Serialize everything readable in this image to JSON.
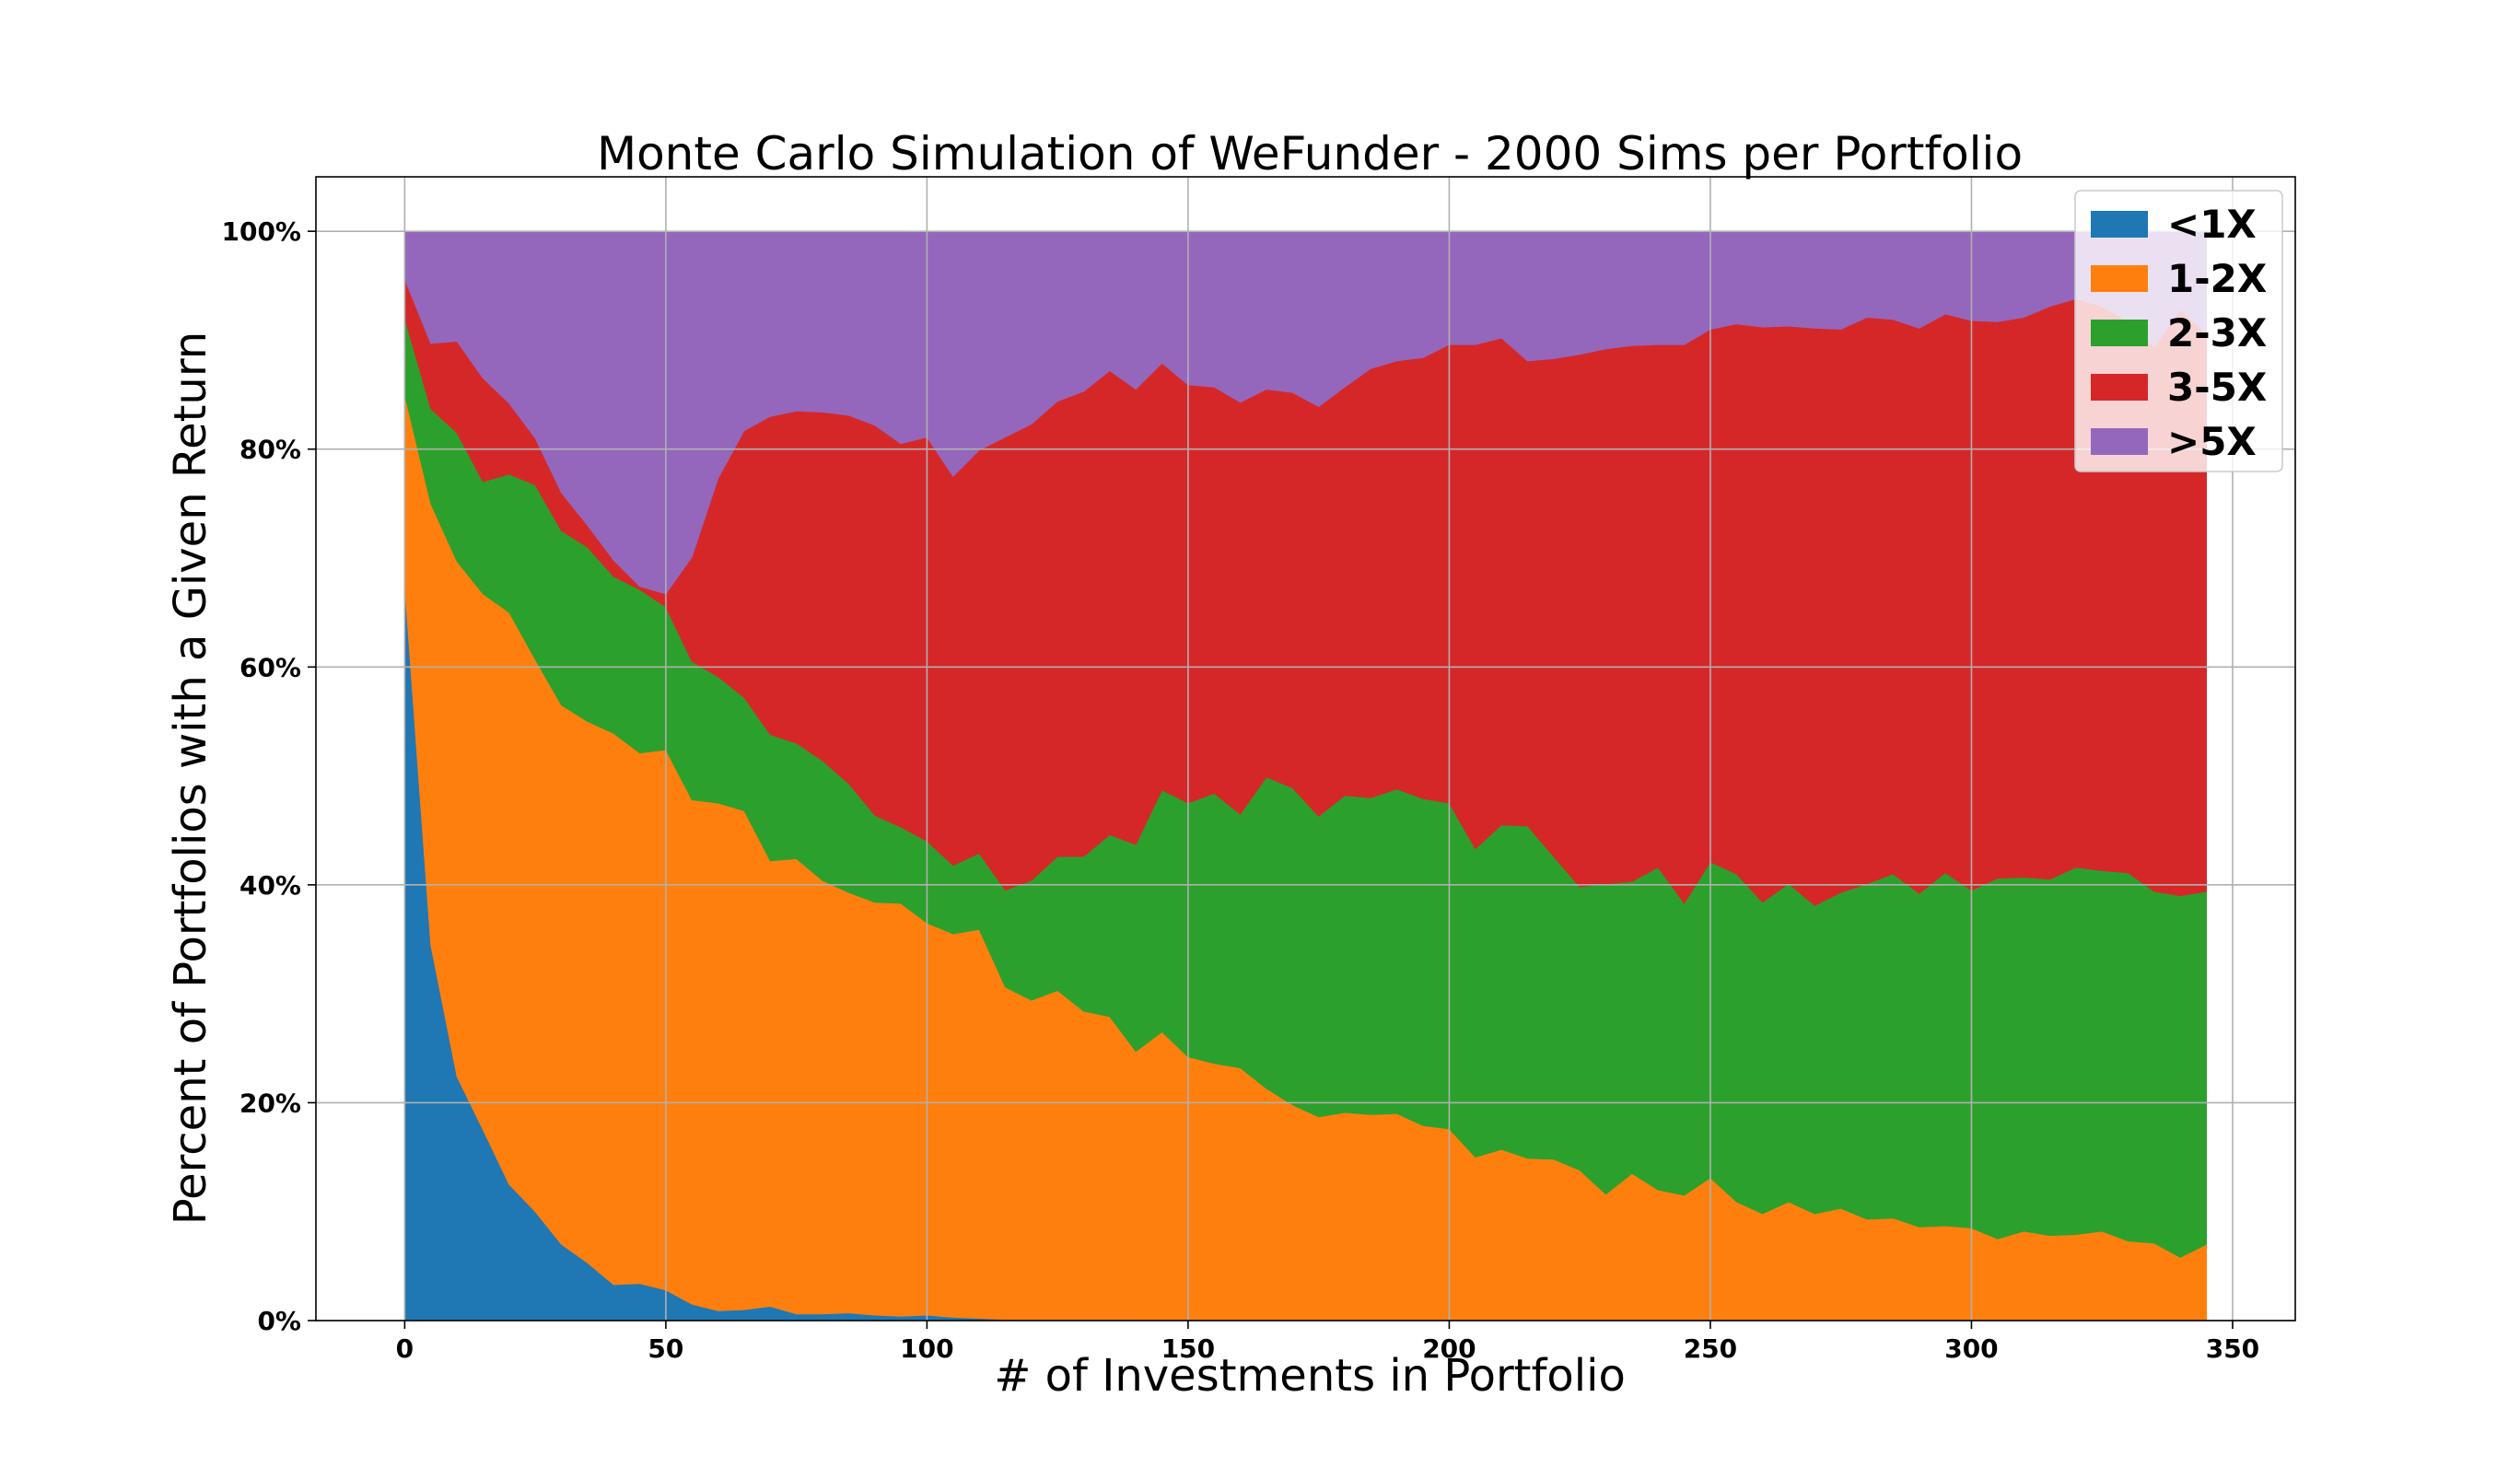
{
  "chart_data": {
    "type": "area",
    "stacked": true,
    "title": "Monte Carlo Simulation of WeFunder - 2000 Sims per Portfolio",
    "xlabel": "# of Investments in Portfolio",
    "ylabel": "Percent of Portfolios with a Given Return",
    "xlim": [
      -17,
      362
    ],
    "ylim": [
      0,
      105
    ],
    "xticks": [
      0,
      50,
      100,
      150,
      200,
      250,
      300,
      350
    ],
    "xtick_labels": [
      "0",
      "50",
      "100",
      "150",
      "200",
      "250",
      "300",
      "350"
    ],
    "yticks": [
      0,
      20,
      40,
      60,
      80,
      100
    ],
    "ytick_labels": [
      "0%",
      "20%",
      "40%",
      "60%",
      "80%",
      "100%"
    ],
    "grid": true,
    "legend_position": "top-right",
    "x": [
      0,
      5,
      10,
      15,
      20,
      25,
      30,
      35,
      40,
      45,
      50,
      55,
      60,
      65,
      70,
      75,
      80,
      85,
      90,
      95,
      100,
      105,
      110,
      115,
      120,
      125,
      130,
      135,
      140,
      145,
      150,
      155,
      160,
      165,
      170,
      175,
      180,
      185,
      190,
      195,
      200,
      205,
      210,
      215,
      220,
      225,
      230,
      235,
      240,
      245,
      250,
      255,
      260,
      265,
      270,
      275,
      280,
      285,
      290,
      295,
      300,
      305,
      310,
      315,
      320,
      325,
      330,
      335,
      340,
      345
    ],
    "series": [
      {
        "name": "<1X",
        "color": "#1f77b4",
        "values": [
          67.5,
          34.5,
          22.4,
          17.5,
          12.5,
          10.0,
          7.0,
          5.3,
          3.3,
          3.4,
          2.8,
          1.5,
          0.9,
          1.0,
          1.3,
          0.6,
          0.6,
          0.7,
          0.5,
          0.4,
          0.5,
          0.3,
          0.2,
          0.1,
          0.1,
          0.1,
          0.1,
          0.1,
          0.1,
          0.0,
          0.0,
          0.0,
          0.0,
          0.0,
          0.0,
          0.0,
          0.0,
          0.0,
          0.0,
          0.0,
          0.0,
          0.0,
          0.0,
          0.0,
          0.0,
          0.0,
          0.0,
          0.0,
          0.0,
          0.0,
          0.0,
          0.0,
          0.0,
          0.0,
          0.0,
          0.0,
          0.0,
          0.0,
          0.0,
          0.0,
          0.0,
          0.0,
          0.0,
          0.0,
          0.0,
          0.0,
          0.0,
          0.0,
          0.0,
          0.0
        ]
      },
      {
        "name": "1-2X",
        "color": "#ff7f0e",
        "values": [
          17.5,
          40.5,
          47.3,
          49.2,
          52.5,
          50.7,
          49.5,
          49.7,
          50.6,
          48.7,
          49.6,
          46.3,
          46.6,
          45.8,
          40.9,
          41.8,
          39.8,
          38.6,
          37.9,
          37.9,
          36.0,
          35.2,
          35.7,
          30.5,
          29.3,
          30.2,
          28.3,
          27.8,
          24.6,
          26.5,
          24.2,
          23.6,
          23.2,
          21.3,
          19.8,
          18.7,
          19.1,
          18.9,
          19.0,
          17.9,
          17.6,
          15.0,
          15.7,
          14.9,
          14.8,
          13.8,
          11.6,
          13.5,
          12.0,
          11.5,
          13.1,
          10.9,
          9.8,
          10.9,
          9.8,
          10.3,
          9.3,
          9.4,
          8.6,
          8.7,
          8.5,
          7.5,
          8.2,
          7.8,
          7.9,
          8.2,
          7.3,
          7.1,
          5.8,
          7.0
        ]
      },
      {
        "name": "2-3X",
        "color": "#2ca02c",
        "values": [
          7.0,
          8.7,
          11.8,
          10.3,
          12.7,
          16.0,
          16.0,
          16.0,
          14.4,
          15.0,
          13.1,
          12.7,
          11.6,
          10.4,
          11.6,
          10.6,
          11.0,
          10.0,
          8.0,
          7.0,
          7.5,
          6.3,
          7.0,
          8.9,
          11.0,
          12.3,
          14.2,
          16.7,
          19.0,
          22.2,
          23.3,
          24.8,
          23.3,
          28.6,
          29.1,
          27.6,
          29.1,
          29.1,
          29.8,
          30.0,
          29.9,
          28.3,
          29.8,
          30.5,
          27.8,
          26.0,
          28.5,
          26.8,
          29.6,
          26.8,
          29.0,
          30.1,
          28.6,
          29.2,
          28.3,
          29.0,
          30.8,
          31.6,
          30.6,
          32.4,
          31.0,
          33.1,
          32.5,
          32.7,
          33.7,
          33.1,
          33.8,
          32.3,
          33.2,
          32.4
        ]
      },
      {
        "name": "3-5X",
        "color": "#d62728",
        "values": [
          3.6,
          6.0,
          8.4,
          9.5,
          6.5,
          4.3,
          3.5,
          2.0,
          1.5,
          0.3,
          1.2,
          9.6,
          18.2,
          24.5,
          29.2,
          30.5,
          32.0,
          33.8,
          35.8,
          35.2,
          37.1,
          35.7,
          37.0,
          41.6,
          41.9,
          41.8,
          42.7,
          42.6,
          41.8,
          39.2,
          38.4,
          37.3,
          37.8,
          35.6,
          36.3,
          37.6,
          37.5,
          39.4,
          39.3,
          40.5,
          42.1,
          46.3,
          44.7,
          42.7,
          45.7,
          48.9,
          49.1,
          49.2,
          48.0,
          51.3,
          48.9,
          50.5,
          52.8,
          51.2,
          53.0,
          51.7,
          52.0,
          50.9,
          51.9,
          51.3,
          52.3,
          51.1,
          51.4,
          52.6,
          52.2,
          51.8,
          50.6,
          50.0,
          53.8,
          51.2
        ]
      },
      {
        "name": ">5X",
        "color": "#9467bd",
        "values": [
          4.4,
          10.3,
          10.1,
          13.5,
          15.8,
          19.0,
          24.0,
          27.0,
          30.2,
          32.6,
          33.3,
          29.9,
          22.7,
          18.3,
          17.0,
          16.5,
          16.6,
          16.9,
          17.8,
          19.5,
          18.9,
          22.5,
          20.1,
          18.9,
          17.7,
          15.6,
          14.7,
          12.8,
          14.5,
          12.1,
          14.1,
          14.3,
          15.7,
          14.5,
          14.8,
          16.1,
          14.3,
          12.6,
          11.9,
          11.6,
          10.4,
          10.4,
          9.8,
          11.9,
          11.7,
          11.3,
          10.8,
          10.5,
          10.4,
          10.4,
          9.0,
          8.5,
          8.8,
          8.7,
          8.9,
          9.0,
          7.9,
          8.1,
          8.9,
          7.6,
          8.2,
          8.3,
          7.9,
          6.9,
          6.2,
          6.9,
          8.3,
          10.6,
          7.2,
          9.4
        ]
      }
    ]
  }
}
